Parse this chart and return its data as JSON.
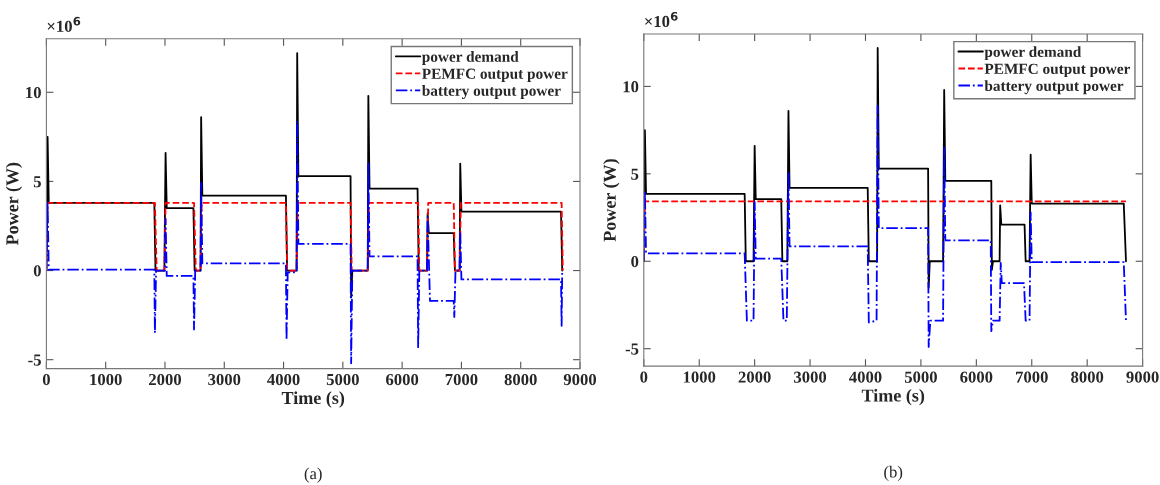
{
  "chart_data": [
    {
      "type": "line",
      "xlabel": "Time (s)",
      "ylabel": "Power (W)",
      "annotations": [
        "×10$^{6}$",
        "(a)"
      ],
      "xlim": [
        0,
        9000
      ],
      "ylim": [
        -5.5,
        13
      ],
      "xticks": [
        0,
        1000,
        2000,
        3000,
        4000,
        5000,
        6000,
        7000,
        8000,
        9000
      ],
      "yticks": [
        -5,
        0,
        5,
        10
      ],
      "grid": false,
      "legend": "top right",
      "marker": "none",
      "series": [
        {
          "name": "power demand",
          "color": "#000000",
          "line_style": "solid",
          "x": [
            0,
            20,
            40,
            1820,
            1840,
            1990,
            2010,
            2030,
            2480,
            2500,
            2600,
            2610,
            2630,
            4040,
            4060,
            4220,
            4230,
            4250,
            5130,
            5140,
            5160,
            5420,
            5430,
            5450,
            6260,
            6280,
            6420,
            6430,
            6450,
            6870,
            6890,
            6970,
            6980,
            7000,
            8680,
            8700
          ],
          "values": [
            0,
            7.5,
            3.8,
            3.8,
            0,
            0,
            6.6,
            3.5,
            3.5,
            0,
            0,
            8.6,
            4.2,
            4.2,
            0,
            0,
            12.2,
            5.3,
            5.3,
            -1.5,
            0,
            0,
            9.8,
            4.6,
            4.6,
            0,
            0,
            3.2,
            2.1,
            2.1,
            0,
            0,
            6.0,
            3.3,
            3.3,
            0
          ]
        },
        {
          "name": "PEMFC output power",
          "color": "#ff0000",
          "line_style": "dashed",
          "x": [
            0,
            20,
            1830,
            1860,
            1990,
            2010,
            2490,
            2520,
            2600,
            2620,
            4040,
            4060,
            4220,
            4240,
            5130,
            5150,
            5420,
            5440,
            6270,
            6290,
            6420,
            6440,
            6870,
            6890,
            6970,
            6990,
            8690,
            8710
          ],
          "values": [
            0,
            3.8,
            3.8,
            0,
            0,
            3.8,
            3.8,
            0,
            0,
            3.8,
            3.8,
            0,
            0,
            3.8,
            3.8,
            0,
            0,
            3.8,
            3.8,
            0,
            0,
            3.8,
            3.8,
            0,
            0,
            3.8,
            3.8,
            0
          ]
        },
        {
          "name": "battery output power",
          "color": "#0000ff",
          "line_style": "dashdot",
          "x": [
            0,
            20,
            40,
            1820,
            1830,
            1850,
            2000,
            2010,
            2030,
            2480,
            2490,
            2510,
            2600,
            2610,
            2630,
            4040,
            4050,
            4070,
            4220,
            4230,
            4250,
            5130,
            5140,
            5160,
            5420,
            5430,
            5450,
            6260,
            6270,
            6290,
            6420,
            6430,
            6470,
            6870,
            6880,
            6900,
            6970,
            6980,
            7000,
            8680,
            8690,
            8700
          ],
          "values": [
            0,
            3.8,
            0.05,
            0.05,
            -3.5,
            0,
            0,
            2.9,
            -0.3,
            -0.3,
            -3.3,
            0,
            0,
            4.9,
            0.4,
            0.4,
            -3.9,
            -0.1,
            -0.1,
            8.4,
            1.5,
            1.5,
            -5.2,
            0,
            0,
            6.0,
            0.8,
            0.8,
            -4.3,
            0,
            0,
            3.0,
            -1.7,
            -1.7,
            -2.6,
            0,
            0,
            2.2,
            -0.5,
            -0.5,
            -3.1,
            0
          ]
        }
      ]
    },
    {
      "type": "line",
      "xlabel": "Time (s)",
      "ylabel": "Power (W)",
      "annotations": [
        "×10$^{6}$",
        "(b)"
      ],
      "xlim": [
        0,
        9000
      ],
      "ylim": [
        -6,
        13
      ],
      "xticks": [
        0,
        1000,
        2000,
        3000,
        4000,
        5000,
        6000,
        7000,
        8000,
        9000
      ],
      "yticks": [
        -5,
        0,
        5,
        10
      ],
      "grid": false,
      "legend": "top right",
      "marker": "none",
      "series": [
        {
          "name": "power demand",
          "color": "#000000",
          "line_style": "solid",
          "x": [
            0,
            20,
            40,
            1820,
            1840,
            1980,
            2000,
            2020,
            2480,
            2500,
            2590,
            2610,
            2630,
            4040,
            4060,
            4210,
            4220,
            4240,
            5130,
            5140,
            5160,
            5400,
            5420,
            5440,
            6270,
            6280,
            6300,
            6420,
            6430,
            6450,
            6870,
            6890,
            6960,
            6980,
            7000,
            8660,
            8700
          ],
          "values": [
            0,
            7.5,
            3.85,
            3.85,
            0,
            0,
            6.6,
            3.55,
            3.55,
            0,
            0,
            8.6,
            4.2,
            4.2,
            0,
            0,
            12.2,
            5.3,
            5.3,
            -1.5,
            0,
            0,
            9.8,
            4.6,
            4.6,
            -0.5,
            0,
            0,
            3.2,
            2.1,
            2.1,
            0,
            0,
            6.1,
            3.3,
            3.3,
            0
          ]
        },
        {
          "name": "PEMFC output power",
          "color": "#ff0000",
          "line_style": "dashed",
          "x": [
            0,
            20,
            8700
          ],
          "values": [
            0,
            3.42,
            3.42
          ]
        },
        {
          "name": "battery output power",
          "color": "#0000ff",
          "line_style": "dashdot",
          "x": [
            0,
            20,
            40,
            1820,
            1860,
            1980,
            2000,
            2020,
            2480,
            2520,
            2580,
            2610,
            2630,
            4040,
            4060,
            4200,
            4220,
            4240,
            5130,
            5140,
            5170,
            5400,
            5420,
            5440,
            6260,
            6270,
            6300,
            6420,
            6440,
            6460,
            6860,
            6890,
            6960,
            6980,
            7000,
            8660,
            8700
          ],
          "values": [
            0,
            4.0,
            0.45,
            0.45,
            -3.4,
            -3.4,
            3.4,
            0.15,
            0.15,
            -3.4,
            -3.4,
            5.1,
            0.85,
            0.85,
            -3.5,
            -3.4,
            8.9,
            1.9,
            1.9,
            -4.9,
            -3.4,
            -3.4,
            6.5,
            1.2,
            1.2,
            -4.0,
            -3.4,
            -3.4,
            -0.1,
            -1.25,
            -1.25,
            -3.4,
            -3.4,
            2.8,
            -0.05,
            -0.05,
            -3.4
          ]
        }
      ]
    }
  ]
}
